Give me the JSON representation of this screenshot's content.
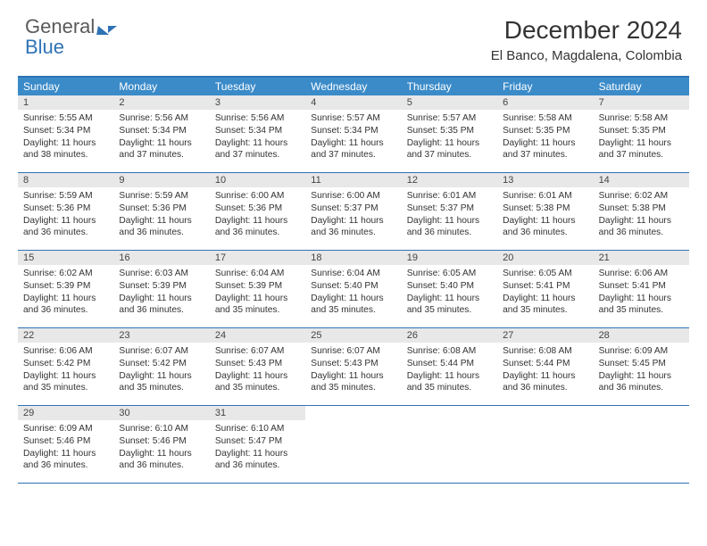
{
  "logo": {
    "line1": "General",
    "line2": "Blue"
  },
  "title": "December 2024",
  "location": "El Banco, Magdalena, Colombia",
  "colors": {
    "header_bar": "#3b8bc9",
    "rule": "#2f73b5",
    "num_bg": "#e8e8e8",
    "text": "#333333",
    "logo_blue": "#2f73b5"
  },
  "dow": [
    "Sunday",
    "Monday",
    "Tuesday",
    "Wednesday",
    "Thursday",
    "Friday",
    "Saturday"
  ],
  "labels": {
    "sunrise": "Sunrise:",
    "sunset": "Sunset:",
    "daylight": "Daylight:"
  },
  "days": [
    {
      "n": 1,
      "sr": "5:55 AM",
      "ss": "5:34 PM",
      "dl": "11 hours and 38 minutes."
    },
    {
      "n": 2,
      "sr": "5:56 AM",
      "ss": "5:34 PM",
      "dl": "11 hours and 37 minutes."
    },
    {
      "n": 3,
      "sr": "5:56 AM",
      "ss": "5:34 PM",
      "dl": "11 hours and 37 minutes."
    },
    {
      "n": 4,
      "sr": "5:57 AM",
      "ss": "5:34 PM",
      "dl": "11 hours and 37 minutes."
    },
    {
      "n": 5,
      "sr": "5:57 AM",
      "ss": "5:35 PM",
      "dl": "11 hours and 37 minutes."
    },
    {
      "n": 6,
      "sr": "5:58 AM",
      "ss": "5:35 PM",
      "dl": "11 hours and 37 minutes."
    },
    {
      "n": 7,
      "sr": "5:58 AM",
      "ss": "5:35 PM",
      "dl": "11 hours and 37 minutes."
    },
    {
      "n": 8,
      "sr": "5:59 AM",
      "ss": "5:36 PM",
      "dl": "11 hours and 36 minutes."
    },
    {
      "n": 9,
      "sr": "5:59 AM",
      "ss": "5:36 PM",
      "dl": "11 hours and 36 minutes."
    },
    {
      "n": 10,
      "sr": "6:00 AM",
      "ss": "5:36 PM",
      "dl": "11 hours and 36 minutes."
    },
    {
      "n": 11,
      "sr": "6:00 AM",
      "ss": "5:37 PM",
      "dl": "11 hours and 36 minutes."
    },
    {
      "n": 12,
      "sr": "6:01 AM",
      "ss": "5:37 PM",
      "dl": "11 hours and 36 minutes."
    },
    {
      "n": 13,
      "sr": "6:01 AM",
      "ss": "5:38 PM",
      "dl": "11 hours and 36 minutes."
    },
    {
      "n": 14,
      "sr": "6:02 AM",
      "ss": "5:38 PM",
      "dl": "11 hours and 36 minutes."
    },
    {
      "n": 15,
      "sr": "6:02 AM",
      "ss": "5:39 PM",
      "dl": "11 hours and 36 minutes."
    },
    {
      "n": 16,
      "sr": "6:03 AM",
      "ss": "5:39 PM",
      "dl": "11 hours and 36 minutes."
    },
    {
      "n": 17,
      "sr": "6:04 AM",
      "ss": "5:39 PM",
      "dl": "11 hours and 35 minutes."
    },
    {
      "n": 18,
      "sr": "6:04 AM",
      "ss": "5:40 PM",
      "dl": "11 hours and 35 minutes."
    },
    {
      "n": 19,
      "sr": "6:05 AM",
      "ss": "5:40 PM",
      "dl": "11 hours and 35 minutes."
    },
    {
      "n": 20,
      "sr": "6:05 AM",
      "ss": "5:41 PM",
      "dl": "11 hours and 35 minutes."
    },
    {
      "n": 21,
      "sr": "6:06 AM",
      "ss": "5:41 PM",
      "dl": "11 hours and 35 minutes."
    },
    {
      "n": 22,
      "sr": "6:06 AM",
      "ss": "5:42 PM",
      "dl": "11 hours and 35 minutes."
    },
    {
      "n": 23,
      "sr": "6:07 AM",
      "ss": "5:42 PM",
      "dl": "11 hours and 35 minutes."
    },
    {
      "n": 24,
      "sr": "6:07 AM",
      "ss": "5:43 PM",
      "dl": "11 hours and 35 minutes."
    },
    {
      "n": 25,
      "sr": "6:07 AM",
      "ss": "5:43 PM",
      "dl": "11 hours and 35 minutes."
    },
    {
      "n": 26,
      "sr": "6:08 AM",
      "ss": "5:44 PM",
      "dl": "11 hours and 35 minutes."
    },
    {
      "n": 27,
      "sr": "6:08 AM",
      "ss": "5:44 PM",
      "dl": "11 hours and 36 minutes."
    },
    {
      "n": 28,
      "sr": "6:09 AM",
      "ss": "5:45 PM",
      "dl": "11 hours and 36 minutes."
    },
    {
      "n": 29,
      "sr": "6:09 AM",
      "ss": "5:46 PM",
      "dl": "11 hours and 36 minutes."
    },
    {
      "n": 30,
      "sr": "6:10 AM",
      "ss": "5:46 PM",
      "dl": "11 hours and 36 minutes."
    },
    {
      "n": 31,
      "sr": "6:10 AM",
      "ss": "5:47 PM",
      "dl": "11 hours and 36 minutes."
    }
  ],
  "start_dow": 0,
  "weeks": 5
}
